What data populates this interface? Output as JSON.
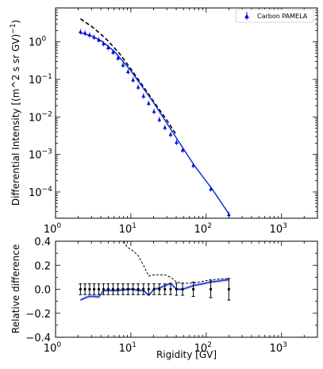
{
  "chart_data": [
    {
      "type": "line",
      "xscale": "log",
      "yscale": "log",
      "xlim": [
        1,
        3000
      ],
      "ylim": [
        2e-05,
        8
      ],
      "xlabel": "",
      "ylabel": "Differential Intensity  [(m^2 s sr GV)$^{-1}$]",
      "ylabel_main": "Differential Intensity  [(m^2 s sr GV)",
      "ylabel_close": ")",
      "ylabel_exp": "−1",
      "x_ticks": [
        {
          "value": 1,
          "base": "10",
          "exp": "0"
        },
        {
          "value": 10,
          "base": "10",
          "exp": "1"
        },
        {
          "value": 100,
          "base": "10",
          "exp": "2"
        },
        {
          "value": 1000,
          "base": "10",
          "exp": "3"
        }
      ],
      "y_ticks": [
        {
          "value": 1,
          "base": "10",
          "exp": "0"
        },
        {
          "value": 0.1,
          "base": "10",
          "exp": "−1"
        },
        {
          "value": 0.01,
          "base": "10",
          "exp": "−2"
        },
        {
          "value": 0.001,
          "base": "10",
          "exp": "−3"
        },
        {
          "value": 0.0001,
          "base": "10",
          "exp": "−4"
        }
      ],
      "legend": {
        "location": "upper right",
        "label": "Carbon PAMELA"
      },
      "colors": {
        "data": "#0000dd",
        "model": "#1a3ad6",
        "band": "#7d8ff0",
        "alt": "#000000"
      },
      "series": [
        {
          "name": "Carbon PAMELA",
          "style": "markers",
          "x": [
            2.14,
            2.46,
            2.83,
            3.25,
            3.75,
            4.33,
            5.0,
            5.8,
            6.74,
            7.86,
            9.17,
            10.7,
            12.5,
            14.7,
            17.2,
            20.3,
            23.9,
            28.3,
            33.7,
            40.3,
            48.6,
            67.5,
            115,
            200
          ],
          "y": [
            1.85,
            1.72,
            1.52,
            1.33,
            1.12,
            0.89,
            0.7,
            0.53,
            0.37,
            0.24,
            0.16,
            0.097,
            0.062,
            0.036,
            0.023,
            0.014,
            0.0085,
            0.0052,
            0.0034,
            0.0021,
            0.0013,
            0.00051,
            0.00012,
            2.5e-05
          ]
        },
        {
          "name": "",
          "style": "solid",
          "x": [
            2.14,
            3,
            4,
            6,
            10,
            20,
            40,
            70,
            120,
            200
          ],
          "y": [
            1.75,
            1.43,
            1.08,
            0.56,
            0.17,
            0.024,
            0.0028,
            0.0005,
            0.00012,
            2.6e-05
          ]
        },
        {
          "name": "",
          "style": "dashed",
          "x": [
            2.14,
            2.5,
            3,
            4,
            5,
            7,
            10,
            15,
            20,
            30,
            40
          ],
          "y": [
            4.1,
            3.3,
            2.6,
            1.6,
            1.05,
            0.5,
            0.19,
            0.06,
            0.026,
            0.0082,
            0.0034
          ]
        }
      ]
    },
    {
      "type": "line",
      "xscale": "log",
      "xlim": [
        1,
        3000
      ],
      "ylim": [
        -0.4,
        0.4
      ],
      "xlabel": "Rigidity [GV]",
      "ylabel": "Relative difference",
      "x_ticks": [
        {
          "value": 1,
          "base": "10",
          "exp": "0"
        },
        {
          "value": 10,
          "base": "10",
          "exp": "1"
        },
        {
          "value": 100,
          "base": "10",
          "exp": "2"
        },
        {
          "value": 1000,
          "base": "10",
          "exp": "3"
        }
      ],
      "y_ticks": [
        {
          "value": 0.4,
          "label": "0.4"
        },
        {
          "value": 0.2,
          "label": "0.2"
        },
        {
          "value": 0.0,
          "label": "0.0"
        },
        {
          "value": -0.2,
          "label": "−0.2"
        },
        {
          "value": -0.4,
          "label": "−0.4"
        }
      ],
      "errorbars": {
        "x": [
          2.14,
          2.46,
          2.83,
          3.25,
          3.75,
          4.33,
          5.0,
          5.8,
          6.74,
          7.86,
          9.17,
          10.7,
          12.5,
          14.7,
          17.2,
          20.3,
          23.9,
          28.3,
          33.7,
          40.3,
          48.6,
          67.5,
          115,
          200
        ],
        "y": [
          0,
          0,
          0,
          0,
          0,
          0,
          0,
          0,
          0,
          0,
          0,
          0,
          0,
          0,
          0,
          0,
          0,
          0,
          0,
          0,
          0,
          0,
          0,
          0
        ],
        "err": [
          0.045,
          0.045,
          0.045,
          0.045,
          0.045,
          0.045,
          0.045,
          0.045,
          0.045,
          0.045,
          0.045,
          0.045,
          0.045,
          0.045,
          0.045,
          0.045,
          0.045,
          0.045,
          0.045,
          0.05,
          0.05,
          0.06,
          0.07,
          0.09
        ]
      },
      "series": [
        {
          "name": "",
          "style": "solid",
          "x": [
            2.14,
            2.5,
            2.83,
            3.25,
            3.75,
            4.33,
            5.0,
            5.8,
            6.74,
            7.86,
            9.17,
            10.7,
            12.5,
            14.7,
            17.2,
            20.3,
            23.9,
            28.3,
            33.7,
            40.3,
            48.6,
            67.5,
            115,
            200
          ],
          "y": [
            -0.09,
            -0.07,
            -0.06,
            -0.06,
            -0.065,
            -0.01,
            -0.01,
            -0.01,
            -0.01,
            -0.005,
            0.0,
            0.0,
            -0.01,
            -0.01,
            -0.05,
            0.0,
            0.01,
            0.03,
            0.05,
            0.0,
            0.0,
            0.03,
            0.06,
            0.08
          ]
        },
        {
          "name": "",
          "style": "dashed",
          "x": [
            8,
            9,
            10.7,
            12.5,
            14.7,
            17.2,
            20.3,
            28.3,
            33.7,
            40.3,
            48.6,
            67.5,
            115,
            200
          ],
          "y": [
            0.4,
            0.35,
            0.32,
            0.28,
            0.2,
            0.11,
            0.12,
            0.12,
            0.1,
            0.06,
            0.05,
            0.05,
            0.08,
            0.09
          ]
        }
      ]
    }
  ]
}
